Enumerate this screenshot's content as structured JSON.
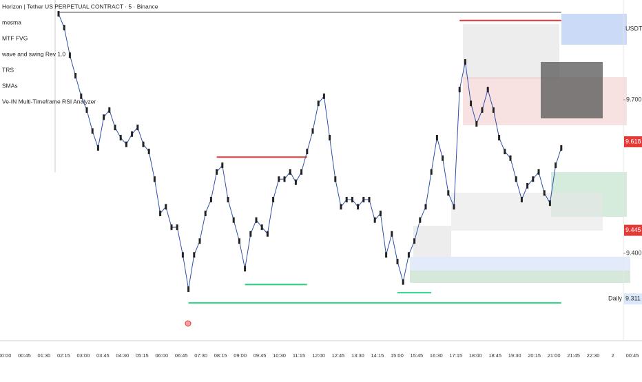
{
  "chart_data": {
    "type": "price",
    "indicators": [
      "Horizon | Tether US PERPETUAL CONTRACT · 5 · Binance",
      "mesma",
      "MTF FVG",
      "wave and swing Rev 1.0",
      "TRS",
      "SMAs",
      "Ve-IN Multi-Timeframe RSI Analyzer"
    ],
    "currency": "USDT",
    "values": [
      9.868,
      9.841,
      9.787,
      9.747,
      9.707,
      9.68,
      9.639,
      9.606,
      9.666,
      9.68,
      9.646,
      9.626,
      9.613,
      9.633,
      9.646,
      9.613,
      9.599,
      9.545,
      9.478,
      9.491,
      9.451,
      9.451,
      9.397,
      9.33,
      9.397,
      9.424,
      9.478,
      9.505,
      9.559,
      9.572,
      9.505,
      9.465,
      9.424,
      9.37,
      9.438,
      9.465,
      9.451,
      9.438,
      9.505,
      9.545,
      9.545,
      9.559,
      9.539,
      9.559,
      9.599,
      9.639,
      9.693,
      9.707,
      9.626,
      9.545,
      9.491,
      9.505,
      9.505,
      9.491,
      9.505,
      9.505,
      9.465,
      9.478,
      9.397,
      9.438,
      9.384,
      9.344,
      9.397,
      9.424,
      9.465,
      9.491,
      9.559,
      9.626,
      9.586,
      9.518,
      9.491,
      9.72,
      9.774,
      9.693,
      9.653,
      9.68,
      9.72,
      9.68,
      9.626,
      9.599,
      9.586,
      9.545,
      9.505,
      9.532,
      9.545,
      9.559,
      9.518,
      9.498,
      9.572,
      9.606
    ],
    "color": "#222222",
    "ylim": [
      9.236,
      9.895
    ],
    "yticks": [
      {
        "value": 9.4,
        "label": "9.400"
      },
      {
        "value": 9.7,
        "label": "9.700"
      }
    ],
    "x_labels": [
      "00:00",
      "00:45",
      "01:30",
      "02:15",
      "03:00",
      "03:45",
      "04:30",
      "05:15",
      "06:00",
      "06:45",
      "07:30",
      "08:15",
      "09:00",
      "09:45",
      "10:30",
      "11:15",
      "12:00",
      "12:45",
      "13:30",
      "14:15",
      "15:00",
      "15:45",
      "16:30",
      "17:15",
      "18:00",
      "18:45",
      "19:30",
      "20:15",
      "21:00",
      "21:45",
      "22:30",
      "2",
      "00:45"
    ],
    "levels": [
      {
        "value": 9.871,
        "color": "#9e9e9e",
        "start": 0,
        "end": 89
      },
      {
        "value": 9.855,
        "color": "#e53935",
        "start": 71,
        "end": 89
      },
      {
        "value": 9.588,
        "color": "#e53935",
        "start": 28,
        "end": 44
      },
      {
        "value": 9.339,
        "color": "#26d07c",
        "start": 33,
        "end": 44
      },
      {
        "value": 9.323,
        "color": "#26d07c",
        "start": 60,
        "end": 66
      },
      {
        "value": 9.303,
        "color": "#26d07c",
        "start": 23,
        "end": 89
      }
    ],
    "price_labels": [
      {
        "value": 9.618,
        "label": "9.618",
        "color": "#e53935"
      },
      {
        "value": 9.445,
        "label": "9.445",
        "color": "#e53935"
      },
      {
        "value": 9.311,
        "label": "9.311",
        "color": "#dbe8fb",
        "tag": "Daily"
      }
    ]
  }
}
